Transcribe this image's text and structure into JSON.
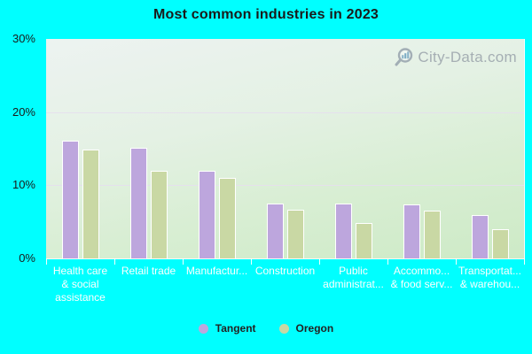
{
  "title": "Most common industries in 2023",
  "watermark": {
    "text": "City-Data.com",
    "icon": "magnifier-with-bars-icon"
  },
  "colors": {
    "background": "#00ffff",
    "tangent_bar": "#bda6dd",
    "oregon_bar": "#c9d8a4",
    "bar_border": "#ffffff",
    "x_label_text": "#ffffff",
    "y_label_text": "#1a1a1a",
    "watermark_text": "#9aa3ab"
  },
  "y_axis": {
    "ticks": [
      "30%",
      "20%",
      "10%",
      "0%"
    ]
  },
  "legend": {
    "items": [
      {
        "label": "Tangent",
        "color": "#bda6dd"
      },
      {
        "label": "Oregon",
        "color": "#c9d8a4"
      }
    ]
  },
  "chart_data": {
    "type": "bar",
    "title": "Most common industries in 2023",
    "categories": [
      "Health care & social assistance",
      "Retail trade",
      "Manufactur...",
      "Construction",
      "Public administrat...",
      "Accommo... & food serv...",
      "Transportat... & warehou..."
    ],
    "categories_display": [
      [
        "Health care",
        "& social",
        "assistance"
      ],
      [
        "Retail trade"
      ],
      [
        "Manufactur..."
      ],
      [
        "Construction"
      ],
      [
        "Public",
        "administrat..."
      ],
      [
        "Accommo...",
        "& food serv..."
      ],
      [
        "Transportat...",
        "& warehou..."
      ]
    ],
    "series": [
      {
        "name": "Tangent",
        "color": "#bda6dd",
        "values": [
          16.1,
          15.1,
          12.0,
          7.5,
          7.5,
          7.4,
          5.9
        ]
      },
      {
        "name": "Oregon",
        "color": "#c9d8a4",
        "values": [
          14.9,
          12.0,
          11.0,
          6.7,
          4.9,
          6.5,
          4.0
        ]
      }
    ],
    "xlabel": "",
    "ylabel": "",
    "ylim": [
      0,
      30
    ],
    "y_tick_step": 10,
    "y_tick_labels": [
      "0%",
      "10%",
      "20%",
      "30%"
    ],
    "grid": "horizontal",
    "legend_position": "bottom"
  }
}
